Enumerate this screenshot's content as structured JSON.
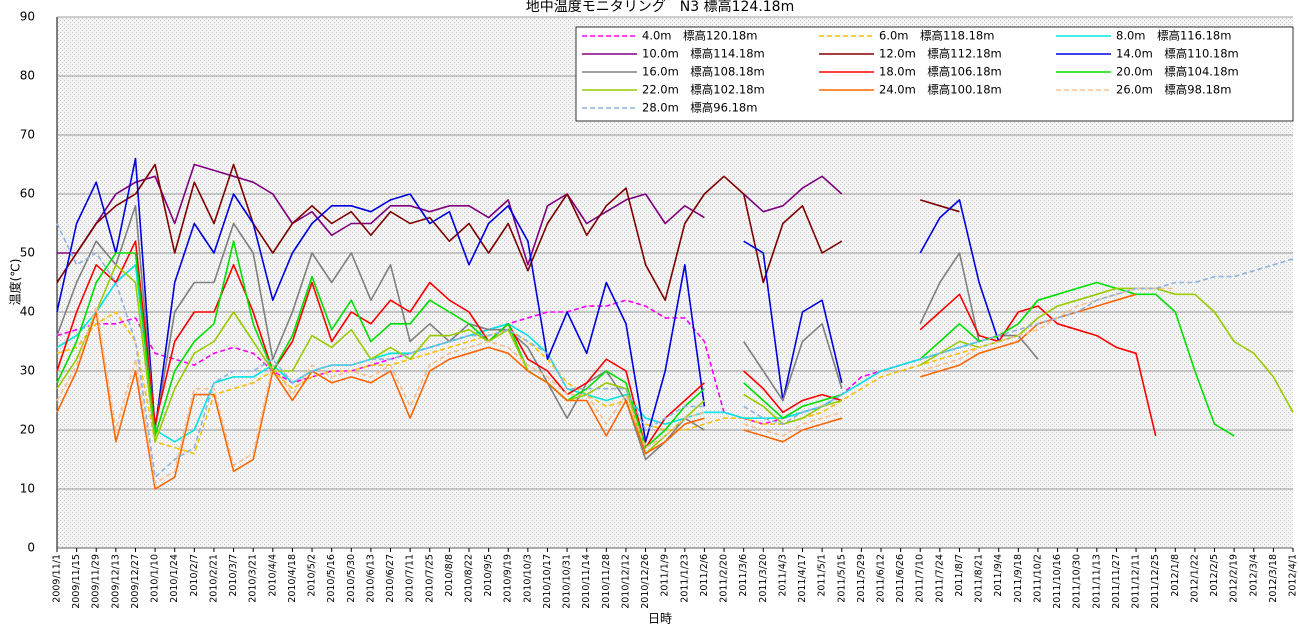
{
  "chart_data": {
    "type": "line",
    "title": "地中温度モニタリング　N3 標高124.18m",
    "x_label": "日時",
    "y_label": "温度(℃)",
    "ylim": [
      0,
      90
    ],
    "yticks": [
      0,
      10,
      20,
      30,
      40,
      50,
      60,
      70,
      80,
      90
    ],
    "grid": true,
    "legend": "upper right",
    "categories": [
      "2009/11/1",
      "2009/11/15",
      "2009/11/29",
      "2009/12/13",
      "2009/12/27",
      "2010/1/10",
      "2010/1/24",
      "2010/2/7",
      "2010/2/21",
      "2010/3/7",
      "2010/3/21",
      "2010/4/4",
      "2010/4/18",
      "2010/5/2",
      "2010/5/16",
      "2010/5/30",
      "2010/6/13",
      "2010/6/27",
      "2010/7/11",
      "2010/7/25",
      "2010/8/8",
      "2010/8/22",
      "2010/9/5",
      "2010/9/19",
      "2010/10/3",
      "2010/10/17",
      "2010/10/31",
      "2010/11/14",
      "2010/11/28",
      "2010/12/12",
      "2010/12/26",
      "2011/1/9",
      "2011/1/23",
      "2011/2/6",
      "2011/2/20",
      "2011/3/6",
      "2011/3/20",
      "2011/4/3",
      "2011/4/17",
      "2011/5/1",
      "2011/5/15",
      "2011/5/29",
      "2011/6/12",
      "2011/6/26",
      "2011/7/10",
      "2011/7/24",
      "2011/8/7",
      "2011/8/21",
      "2011/9/4",
      "2011/9/18",
      "2011/10/2",
      "2011/10/16",
      "2011/10/30",
      "2011/11/13",
      "2011/11/27",
      "2011/12/11",
      "2011/12/25",
      "2012/1/8",
      "2012/1/22",
      "2012/2/5",
      "2012/2/19",
      "2012/3/4",
      "2012/3/18",
      "2012/4/1"
    ],
    "series": [
      {
        "name": "4.0m　標高120.18m",
        "color": "#ff00ff",
        "dashed": true,
        "values": [
          36,
          37,
          38,
          38,
          39,
          33,
          32,
          31,
          33,
          34,
          33,
          30,
          28,
          29,
          30,
          30,
          31,
          32,
          33,
          34,
          35,
          36,
          37,
          38,
          39,
          40,
          40,
          41,
          41,
          42,
          41,
          39,
          39,
          35,
          23,
          22,
          21,
          22,
          23,
          24,
          26,
          29,
          30,
          31,
          32,
          33,
          34,
          35,
          36,
          null,
          null,
          null,
          null,
          null,
          null,
          null,
          null,
          null,
          null,
          null,
          null,
          null,
          null,
          null
        ]
      },
      {
        "name": "6.0m　標高118.18m",
        "color": "#ffc000",
        "dashed": true,
        "values": [
          33,
          34,
          38,
          40,
          35,
          18,
          17,
          16,
          26,
          27,
          28,
          30,
          27,
          29,
          30,
          30,
          31,
          31,
          32,
          33,
          34,
          35,
          36,
          37,
          35,
          32,
          28,
          26,
          24,
          25,
          21,
          20,
          20,
          21,
          22,
          22,
          21,
          21,
          22,
          23,
          25,
          27,
          29,
          30,
          31,
          32,
          33,
          34,
          35,
          null,
          null,
          null,
          null,
          null,
          null,
          null,
          null,
          null,
          null,
          null,
          null,
          null,
          null,
          null
        ]
      },
      {
        "name": "8.0m　標高116.18m",
        "color": "#00e5e5",
        "dashed": false,
        "values": [
          34,
          36,
          40,
          45,
          48,
          20,
          18,
          20,
          28,
          29,
          29,
          31,
          28,
          30,
          31,
          31,
          32,
          33,
          33,
          34,
          35,
          36,
          37,
          38,
          36,
          33,
          27,
          26,
          25,
          26,
          22,
          21,
          22,
          23,
          23,
          22,
          22,
          22,
          23,
          24,
          26,
          28,
          30,
          31,
          32,
          33,
          34,
          35,
          36,
          null,
          null,
          null,
          null,
          null,
          null,
          null,
          null,
          null,
          null,
          null,
          null,
          null,
          null,
          null
        ]
      },
      {
        "name": "10.0m　標高114.18m",
        "color": "#800080",
        "dashed": false,
        "values": [
          50,
          50,
          55,
          60,
          62,
          63,
          55,
          65,
          64,
          63,
          62,
          60,
          55,
          57,
          53,
          55,
          55,
          58,
          58,
          57,
          58,
          58,
          56,
          59,
          48,
          58,
          60,
          55,
          57,
          59,
          60,
          55,
          58,
          56,
          null,
          60,
          57,
          58,
          61,
          63,
          60,
          null,
          58,
          null,
          null,
          null,
          null,
          null,
          null,
          null,
          null,
          null,
          null,
          null,
          null,
          null,
          null,
          null,
          null,
          null,
          null,
          null,
          null,
          null
        ]
      },
      {
        "name": "12.0m　標高112.18m",
        "color": "#800000",
        "dashed": false,
        "values": [
          45,
          50,
          55,
          58,
          60,
          65,
          50,
          62,
          55,
          65,
          55,
          50,
          55,
          58,
          55,
          57,
          53,
          57,
          55,
          56,
          52,
          55,
          50,
          55,
          47,
          55,
          60,
          53,
          58,
          61,
          48,
          42,
          55,
          60,
          63,
          60,
          45,
          55,
          58,
          50,
          52,
          null,
          55,
          null,
          59,
          58,
          57,
          null,
          null,
          null,
          null,
          null,
          null,
          null,
          null,
          null,
          null,
          null,
          null,
          null,
          null,
          null,
          null,
          null
        ]
      },
      {
        "name": "14.0m　標高110.18m",
        "color": "#0000e0",
        "dashed": false,
        "values": [
          40,
          55,
          62,
          50,
          66,
          20,
          45,
          55,
          50,
          60,
          55,
          42,
          50,
          55,
          58,
          58,
          57,
          59,
          60,
          55,
          57,
          48,
          55,
          58,
          52,
          32,
          40,
          33,
          45,
          38,
          18,
          30,
          48,
          24,
          null,
          52,
          50,
          25,
          40,
          42,
          28,
          null,
          35,
          null,
          50,
          56,
          59,
          45,
          35,
          null,
          null,
          null,
          null,
          null,
          null,
          null,
          null,
          null,
          null,
          null,
          null,
          null,
          null,
          null
        ]
      },
      {
        "name": "16.0m　標高108.18m",
        "color": "#808080",
        "dashed": false,
        "values": [
          36,
          45,
          52,
          48,
          58,
          20,
          40,
          45,
          45,
          55,
          50,
          32,
          40,
          50,
          45,
          50,
          42,
          48,
          35,
          38,
          35,
          38,
          37,
          37,
          34,
          28,
          22,
          28,
          30,
          25,
          15,
          18,
          22,
          20,
          null,
          35,
          30,
          25,
          35,
          38,
          27,
          null,
          30,
          null,
          38,
          45,
          50,
          35,
          36,
          36,
          32,
          null,
          null,
          null,
          null,
          null,
          null,
          null,
          null,
          null,
          null,
          null,
          null,
          null
        ]
      },
      {
        "name": "18.0m　標高106.18m",
        "color": "#ff0000",
        "dashed": false,
        "values": [
          30,
          40,
          48,
          45,
          52,
          21,
          35,
          40,
          40,
          48,
          40,
          30,
          35,
          45,
          35,
          40,
          38,
          42,
          40,
          45,
          42,
          40,
          35,
          38,
          32,
          30,
          26,
          28,
          32,
          30,
          17,
          22,
          25,
          28,
          null,
          30,
          27,
          23,
          25,
          26,
          25,
          null,
          32,
          null,
          37,
          40,
          43,
          36,
          35,
          40,
          41,
          38,
          37,
          36,
          34,
          33,
          19,
          null,
          null,
          null,
          null,
          null,
          null,
          null
        ]
      },
      {
        "name": "20.0m　標高104.18m",
        "color": "#00e000",
        "dashed": false,
        "values": [
          28,
          35,
          45,
          50,
          50,
          19,
          30,
          35,
          38,
          52,
          38,
          30,
          36,
          46,
          37,
          42,
          35,
          38,
          38,
          42,
          40,
          38,
          35,
          38,
          30,
          28,
          25,
          27,
          30,
          28,
          17,
          20,
          24,
          27,
          null,
          28,
          25,
          22,
          24,
          25,
          26,
          null,
          30,
          null,
          32,
          35,
          38,
          35,
          36,
          38,
          42,
          43,
          44,
          45,
          44,
          43,
          43,
          40,
          30,
          21,
          19,
          null,
          null,
          null
        ]
      },
      {
        "name": "22.0m　標高102.18m",
        "color": "#99cc00",
        "dashed": false,
        "values": [
          27,
          32,
          40,
          48,
          45,
          18,
          27,
          33,
          35,
          40,
          35,
          30,
          30,
          36,
          34,
          37,
          32,
          34,
          32,
          36,
          36,
          37,
          35,
          37,
          30,
          28,
          25,
          26,
          28,
          27,
          16,
          19,
          22,
          25,
          null,
          26,
          24,
          21,
          22,
          24,
          25,
          null,
          29,
          null,
          31,
          33,
          35,
          34,
          35,
          36,
          39,
          41,
          42,
          43,
          44,
          44,
          44,
          43,
          43,
          40,
          35,
          33,
          29,
          23
        ]
      },
      {
        "name": "24.0m　標高100.18m",
        "color": "#ff6600",
        "dashed": false,
        "values": [
          23,
          30,
          40,
          18,
          30,
          10,
          12,
          26,
          26,
          13,
          15,
          30,
          25,
          30,
          28,
          29,
          28,
          30,
          22,
          30,
          32,
          33,
          34,
          33,
          30,
          28,
          25,
          25,
          19,
          25,
          16,
          18,
          21,
          22,
          null,
          20,
          19,
          18,
          20,
          21,
          22,
          null,
          27,
          null,
          29,
          30,
          31,
          33,
          34,
          35,
          38,
          39,
          40,
          41,
          42,
          43,
          null,
          null,
          null,
          null,
          null,
          null,
          null,
          null
        ]
      },
      {
        "name": "26.0m　標高98.18m",
        "color": "#fac090",
        "dashed": true,
        "values": [
          25,
          31,
          41,
          20,
          32,
          11,
          13,
          27,
          27,
          14,
          16,
          31,
          26,
          31,
          29,
          30,
          29,
          31,
          24,
          31,
          33,
          34,
          35,
          34,
          31,
          29,
          26,
          26,
          21,
          26,
          17,
          19,
          22,
          23,
          null,
          21,
          20,
          19,
          21,
          22,
          23,
          null,
          28,
          null,
          30,
          31,
          32,
          34,
          35,
          36,
          37,
          39,
          41,
          42,
          43,
          44,
          44,
          44,
          null,
          null,
          null,
          null,
          null,
          null
        ]
      },
      {
        "name": "28.0m　標高96.18m",
        "color": "#8db4e2",
        "dashed": true,
        "values": [
          55,
          48,
          50,
          45,
          35,
          12,
          15,
          17,
          28,
          30,
          30,
          32,
          28,
          30,
          31,
          31,
          32,
          32,
          33,
          34,
          35,
          36,
          36,
          37,
          35,
          33,
          27,
          27,
          27,
          27,
          20,
          22,
          24,
          24,
          null,
          24,
          22,
          21,
          23,
          24,
          26,
          null,
          30,
          null,
          32,
          33,
          34,
          35,
          36,
          37,
          38,
          39,
          40,
          42,
          43,
          44,
          44,
          45,
          45,
          46,
          46,
          47,
          48,
          49
        ]
      }
    ]
  }
}
